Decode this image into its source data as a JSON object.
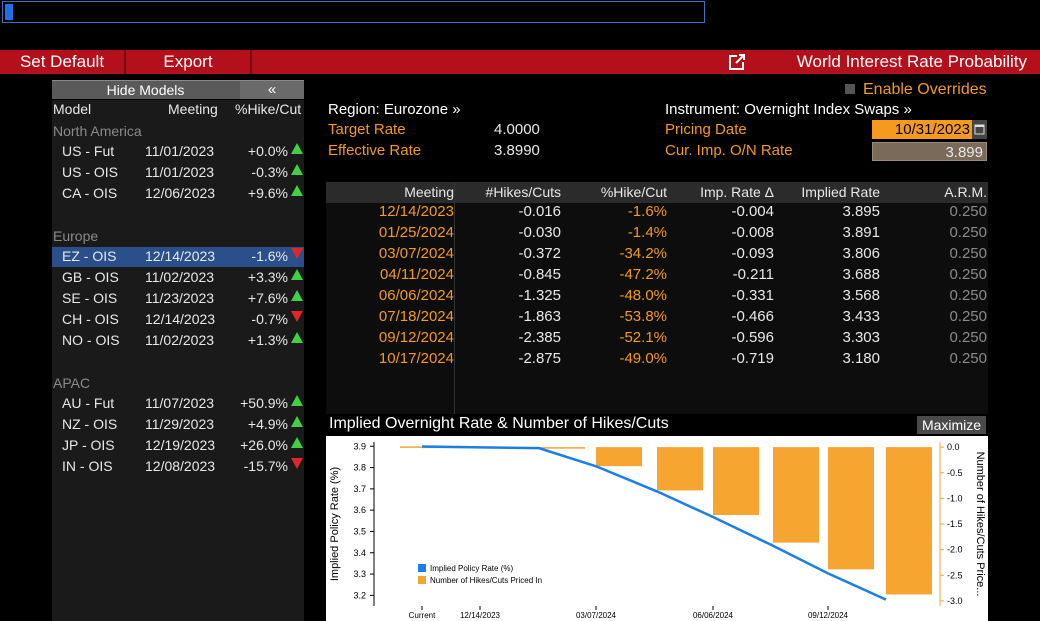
{
  "toolbar": {
    "set_default": "Set Default",
    "export": "Export",
    "title": "World Interest Rate Probability"
  },
  "left_panel": {
    "hide_models": "Hide Models",
    "collapse": "«",
    "headers": {
      "model": "Model",
      "meeting": "Meeting",
      "pct": "%Hike/Cut"
    },
    "groups": [
      {
        "name": "North America",
        "rows": [
          {
            "model": "US - Fut",
            "meeting": "11/01/2023",
            "pct": "+0.0%",
            "dir": "up"
          },
          {
            "model": "US - OIS",
            "meeting": "11/01/2023",
            "pct": "-0.3%",
            "dir": "up"
          },
          {
            "model": "CA - OIS",
            "meeting": "12/06/2023",
            "pct": "+9.6%",
            "dir": "up"
          }
        ]
      },
      {
        "name": "Europe",
        "rows": [
          {
            "model": "EZ - OIS",
            "meeting": "12/14/2023",
            "pct": "-1.6%",
            "dir": "down",
            "selected": true
          },
          {
            "model": "GB - OIS",
            "meeting": "11/02/2023",
            "pct": "+3.3%",
            "dir": "up"
          },
          {
            "model": "SE - OIS",
            "meeting": "11/23/2023",
            "pct": "+7.6%",
            "dir": "up"
          },
          {
            "model": "CH - OIS",
            "meeting": "12/14/2023",
            "pct": "-0.7%",
            "dir": "down"
          },
          {
            "model": "NO - OIS",
            "meeting": "11/02/2023",
            "pct": "+1.3%",
            "dir": "up"
          }
        ]
      },
      {
        "name": "APAC",
        "rows": [
          {
            "model": "AU - Fut",
            "meeting": "11/07/2023",
            "pct": "+50.9%",
            "dir": "up"
          },
          {
            "model": "NZ - OIS",
            "meeting": "11/29/2023",
            "pct": "+4.9%",
            "dir": "up"
          },
          {
            "model": "JP - OIS",
            "meeting": "12/19/2023",
            "pct": "+26.0%",
            "dir": "up"
          },
          {
            "model": "IN - OIS",
            "meeting": "12/08/2023",
            "pct": "-15.7%",
            "dir": "down"
          }
        ]
      }
    ]
  },
  "info": {
    "region": "Region: Eurozone »",
    "instrument": "Instrument: Overnight Index Swaps »",
    "enable_overrides": "Enable Overrides",
    "target_rate_label": "Target Rate",
    "target_rate": "4.0000",
    "effective_rate_label": "Effective Rate",
    "effective_rate": "3.8990",
    "pricing_date_label": "Pricing Date",
    "pricing_date": "10/31/2023",
    "cur_imp_label": "Cur. Imp. O/N Rate",
    "cur_imp": "3.899"
  },
  "table": {
    "headers": [
      "Meeting",
      "#Hikes/Cuts",
      "%Hike/Cut",
      "Imp. Rate Δ",
      "Implied Rate",
      "A.R.M."
    ],
    "rows": [
      [
        "12/14/2023",
        "-0.016",
        "-1.6%",
        "-0.004",
        "3.895",
        "0.250"
      ],
      [
        "01/25/2024",
        "-0.030",
        "-1.4%",
        "-0.008",
        "3.891",
        "0.250"
      ],
      [
        "03/07/2024",
        "-0.372",
        "-34.2%",
        "-0.093",
        "3.806",
        "0.250"
      ],
      [
        "04/11/2024",
        "-0.845",
        "-47.2%",
        "-0.211",
        "3.688",
        "0.250"
      ],
      [
        "06/06/2024",
        "-1.325",
        "-48.0%",
        "-0.331",
        "3.568",
        "0.250"
      ],
      [
        "07/18/2024",
        "-1.863",
        "-53.8%",
        "-0.466",
        "3.433",
        "0.250"
      ],
      [
        "09/12/2024",
        "-2.385",
        "-52.1%",
        "-0.596",
        "3.303",
        "0.250"
      ],
      [
        "10/17/2024",
        "-2.875",
        "-49.0%",
        "-0.719",
        "3.180",
        "0.250"
      ]
    ]
  },
  "chart_title": "Implied Overnight Rate & Number of Hikes/Cuts",
  "maximize": "Maximize",
  "chart_data": {
    "type": "bar",
    "title": "Implied Overnight Rate & Number of Hikes/Cuts",
    "categories": [
      "Current",
      "12/14/2023",
      "01/25/2024",
      "03/07/2024",
      "04/11/2024",
      "06/06/2024",
      "07/18/2024",
      "09/12/2024",
      "10/17/2024"
    ],
    "x_tick_labels": [
      "Current",
      "12/14/2023",
      "03/07/2024",
      "06/06/2024",
      "09/12/2024"
    ],
    "ylabel": "Implied Policy Rate (%)",
    "y2label": "Number of Hikes/Cuts Price...",
    "ylim": [
      3.15,
      3.92
    ],
    "y_ticks": [
      3.2,
      3.3,
      3.4,
      3.5,
      3.6,
      3.7,
      3.8,
      3.9
    ],
    "y2lim": [
      -3.1,
      0.1
    ],
    "y2_ticks": [
      "0.0",
      "-0.5",
      "-1.0",
      "-1.5",
      "-2.0",
      "-2.5",
      "-3.0"
    ],
    "legend_position": "bottom-left",
    "series": [
      {
        "name": "Implied Policy Rate (%)",
        "kind": "line",
        "axis": "left",
        "color": "#1a7fe8",
        "values": [
          3.899,
          3.895,
          3.891,
          3.806,
          3.688,
          3.568,
          3.433,
          3.303,
          3.18
        ]
      },
      {
        "name": "Number of Hikes/Cuts Priced In",
        "kind": "bar",
        "axis": "right",
        "color": "#f7a531",
        "values": [
          0.0,
          -0.016,
          -0.03,
          -0.372,
          -0.845,
          -1.325,
          -1.863,
          -2.385,
          -2.875
        ]
      }
    ]
  }
}
